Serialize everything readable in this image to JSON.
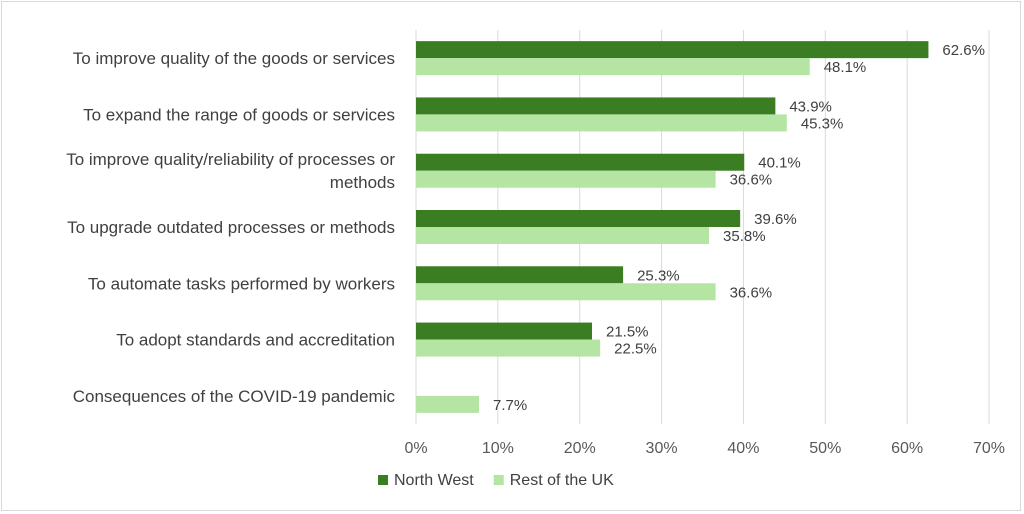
{
  "chart_data": {
    "type": "bar",
    "orientation": "horizontal",
    "categories": [
      [
        "To improve quality of the goods or services"
      ],
      [
        "To expand the range of goods or services"
      ],
      [
        "To improve quality/reliability of processes or",
        "methods"
      ],
      [
        "To upgrade outdated processes or methods"
      ],
      [
        "To automate tasks performed by workers"
      ],
      [
        "To adopt standards and accreditation"
      ],
      [
        "Consequences of the COVID-19 pandemic"
      ]
    ],
    "series": [
      {
        "name": "North West",
        "color": "#3a7d22",
        "values": [
          62.6,
          43.9,
          40.1,
          39.6,
          25.3,
          21.5,
          null
        ],
        "labels": [
          "62.6%",
          "43.9%",
          "40.1%",
          "39.6%",
          "25.3%",
          "21.5%",
          ""
        ]
      },
      {
        "name": "Rest of the UK",
        "color": "#b4e5a2",
        "values": [
          48.1,
          45.3,
          36.6,
          35.8,
          36.6,
          22.5,
          7.7
        ],
        "labels": [
          "48.1%",
          "45.3%",
          "36.6%",
          "35.8%",
          "36.6%",
          "22.5%",
          "7.7%"
        ]
      }
    ],
    "xlim": [
      0,
      70
    ],
    "ticks": [
      0,
      10,
      20,
      30,
      40,
      50,
      60,
      70
    ],
    "tick_labels": [
      "0%",
      "10%",
      "20%",
      "30%",
      "40%",
      "50%",
      "60%",
      "70%"
    ],
    "grid": true,
    "legend": "bottom"
  }
}
